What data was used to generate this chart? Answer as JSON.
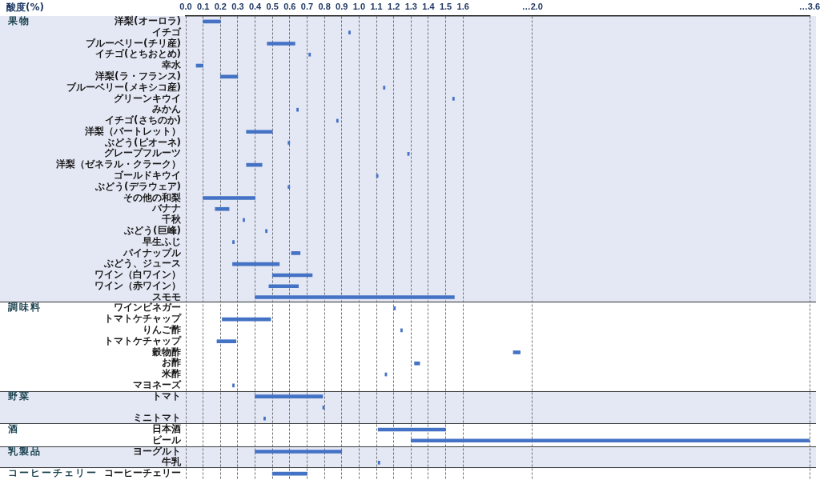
{
  "chart_data": {
    "type": "bar",
    "orientation": "horizontal",
    "xlabel": "酸度(%)",
    "categories": [
      "洋梨(オーロラ)",
      "イチゴ",
      "ブルーベリー(チリ産)",
      "イチゴ(とちおとめ)",
      "幸水",
      "洋梨(ラ・フランス)",
      "ブルーベリー(メキシコ産)",
      "グリーンキウイ",
      "みかん",
      "イチゴ(さちのか)",
      "洋梨（バートレット）",
      "ぶどう(ピオーネ)",
      "グレープフルーツ",
      "洋梨（ゼネラル・クラーク）",
      "ゴールドキウイ",
      "ぶどう(デラウェア)",
      "その他の和梨",
      "バナナ",
      "千秋",
      "ぶどう(巨峰)",
      "早生ふじ",
      "パイナップル",
      "ぶどう、ジュース",
      "ワイン（白ワイン）",
      "ワイン（赤ワイン）",
      "スモモ",
      "ワインビネガー",
      "トマトケチャップ",
      "りんご酢",
      "トマトケチャップ",
      "穀物酢",
      "お酢",
      "米酢",
      "マヨネーズ",
      "トマト",
      null,
      "ミニトマト",
      "日本酒",
      "ビール",
      "ヨーグルト",
      "牛乳",
      "コーヒーチェリー"
    ],
    "base": [
      0.1,
      0.94,
      0.47,
      0.71,
      0.06,
      0.2,
      1.14,
      1.54,
      0.64,
      0.87,
      0.35,
      0.59,
      1.28,
      0.35,
      1.1,
      0.59,
      0.1,
      0.17,
      0.33,
      0.46,
      0.27,
      0.61,
      0.27,
      0.5,
      0.48,
      0.4,
      1.2,
      0.21,
      1.24,
      0.18,
      1.89,
      1.32,
      1.15,
      0.27,
      0.4,
      0.79,
      0.45,
      1.11,
      1.3,
      0.4,
      1.11,
      0.5
    ],
    "values": [
      0.1,
      0.01,
      0.16,
      0.01,
      0.04,
      0.1,
      0.01,
      0.01,
      0.01,
      0.01,
      0.15,
      0.01,
      0.01,
      0.09,
      0.01,
      0.01,
      0.3,
      0.08,
      0.01,
      0.01,
      0.01,
      0.05,
      0.27,
      0.23,
      0.17,
      1.15,
      0.01,
      0.28,
      0.01,
      0.11,
      0.04,
      0.03,
      0.01,
      0.01,
      0.39,
      0.01,
      0.01,
      0.39,
      2.3,
      0.5,
      0.01,
      0.2
    ],
    "color": "#4472c4",
    "xlim": [
      0,
      3.6
    ],
    "xticks": [
      {
        "value": 0,
        "label": "0.0"
      },
      0.1,
      0.2,
      0.3,
      0.4,
      0.5,
      0.6,
      0.7,
      0.8,
      0.9,
      {
        "value": 1,
        "label": "1.0"
      },
      1.1,
      1.2,
      1.3,
      1.4,
      1.5,
      1.6,
      {
        "value": 2,
        "label": "…2.0"
      },
      {
        "value": 3.6,
        "label": "…3.6"
      }
    ],
    "grid": "x",
    "bands": [
      {
        "axis": "y",
        "from": "洋梨(オーロラ)",
        "to": "スモモ",
        "label": "果物",
        "color": "#e4e8f4"
      },
      {
        "axis": "y",
        "from": "トマト",
        "to": "ミニトマト",
        "label": "野菜",
        "color": "#e4e8f4"
      },
      {
        "axis": "y",
        "from": "ヨーグルト",
        "to": "牛乳",
        "label": "乳製品",
        "color": "#e4e8f4"
      }
    ],
    "annotations": [
      "調味料",
      "酒",
      "コーヒーチェリー"
    ]
  }
}
